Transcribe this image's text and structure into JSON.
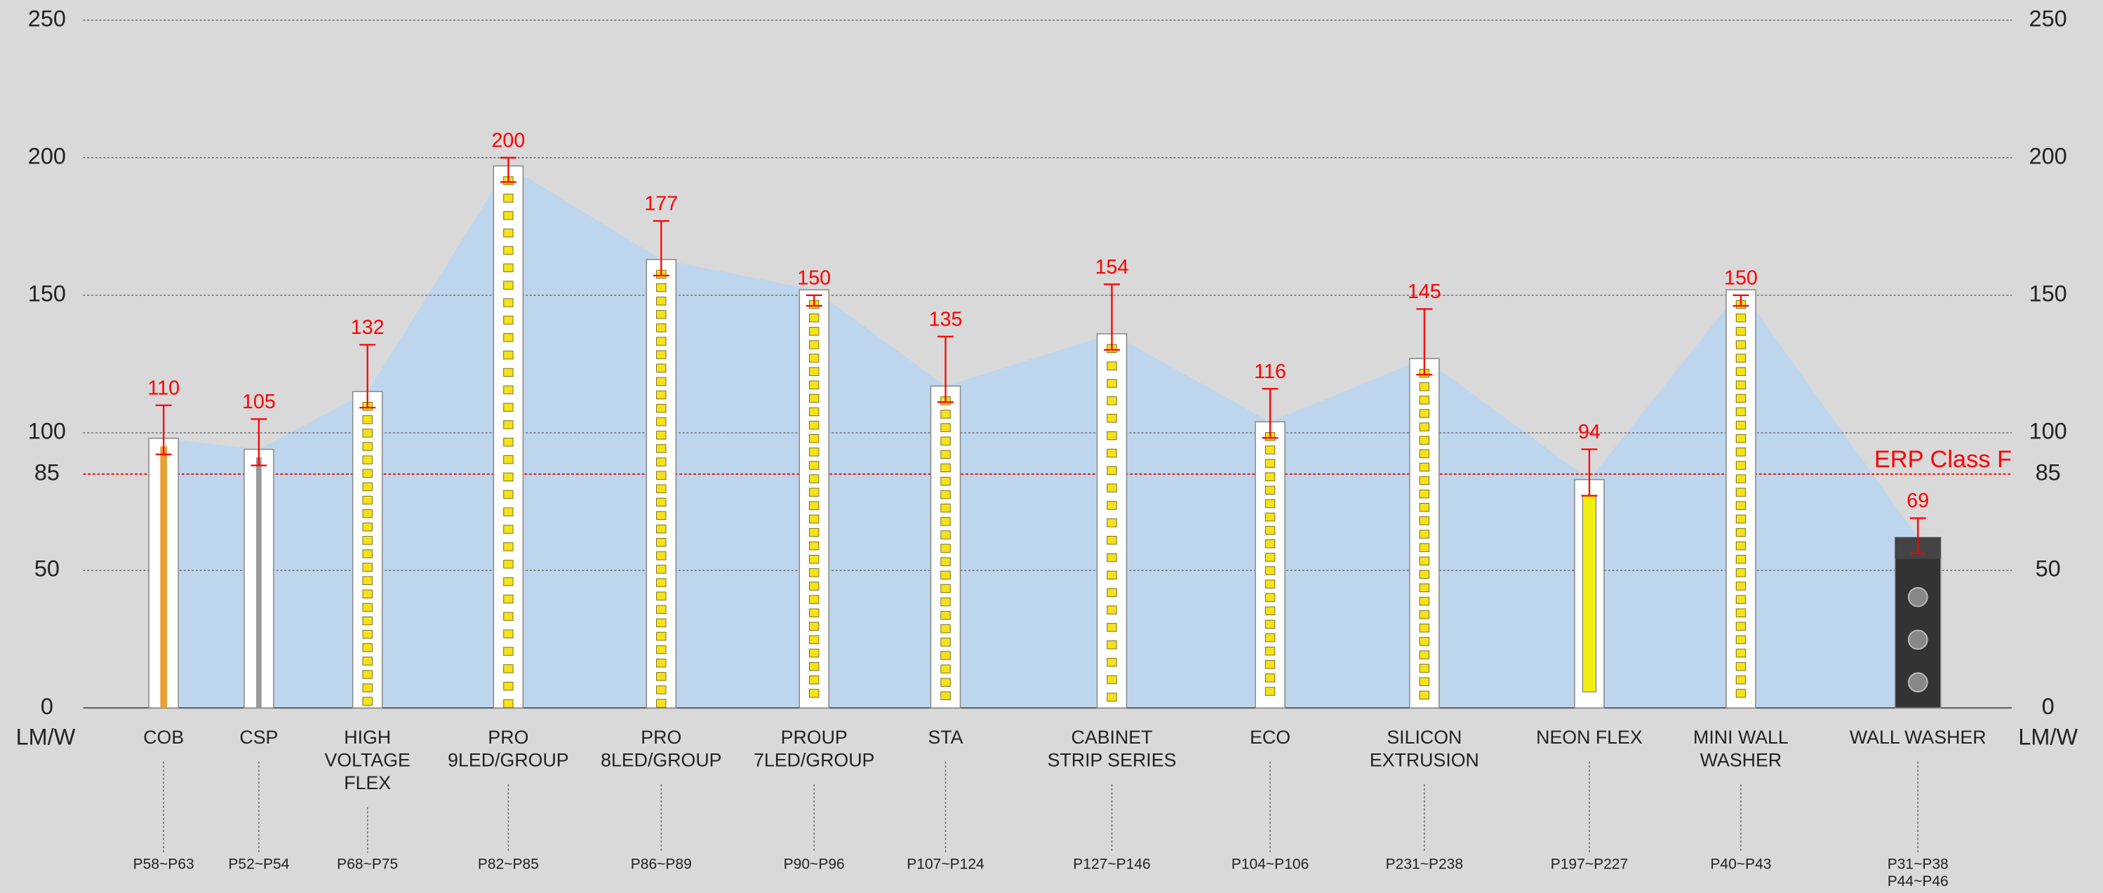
{
  "chart_data": {
    "type": "bar",
    "categories": [
      [
        "COB"
      ],
      [
        "CSP"
      ],
      [
        "HIGH",
        "VOLTAGE",
        "FLEX"
      ],
      [
        "PRO",
        "9LED/GROUP"
      ],
      [
        "PRO",
        "8LED/GROUP"
      ],
      [
        "PROUP",
        "7LED/GROUP"
      ],
      [
        "STA"
      ],
      [
        "CABINET",
        "STRIP SERIES"
      ],
      [
        "ECO"
      ],
      [
        "SILICON",
        "EXTRUSION"
      ],
      [
        "NEON FLEX"
      ],
      [
        "MINI WALL",
        "WASHER"
      ],
      [
        "WALL WASHER"
      ]
    ],
    "pages": [
      [
        "P58~P63"
      ],
      [
        "P52~P54"
      ],
      [
        "P68~P75"
      ],
      [
        "P82~P85"
      ],
      [
        "P86~P89"
      ],
      [
        "P90~P96"
      ],
      [
        "P107~P124"
      ],
      [
        "P127~P146"
      ],
      [
        "P104~P106"
      ],
      [
        "P231~P238"
      ],
      [
        "P197~P227"
      ],
      [
        "P40~P43"
      ],
      [
        "P31~P38",
        "P44~P46"
      ]
    ],
    "values": [
      110,
      105,
      132,
      200,
      177,
      150,
      135,
      154,
      116,
      145,
      94,
      150,
      69
    ],
    "strip_values": [
      98,
      94,
      115,
      197,
      163,
      152,
      117,
      136,
      104,
      127,
      83,
      152,
      62
    ],
    "ylim": [
      0,
      250
    ],
    "yticks": [
      0,
      50,
      85,
      100,
      150,
      200,
      250
    ],
    "y_label": "LM/W",
    "reference": {
      "value": 85,
      "label": "ERP Class F"
    },
    "grid": true,
    "label_color": "#ff0000",
    "area_color": "#b9d5f0"
  }
}
